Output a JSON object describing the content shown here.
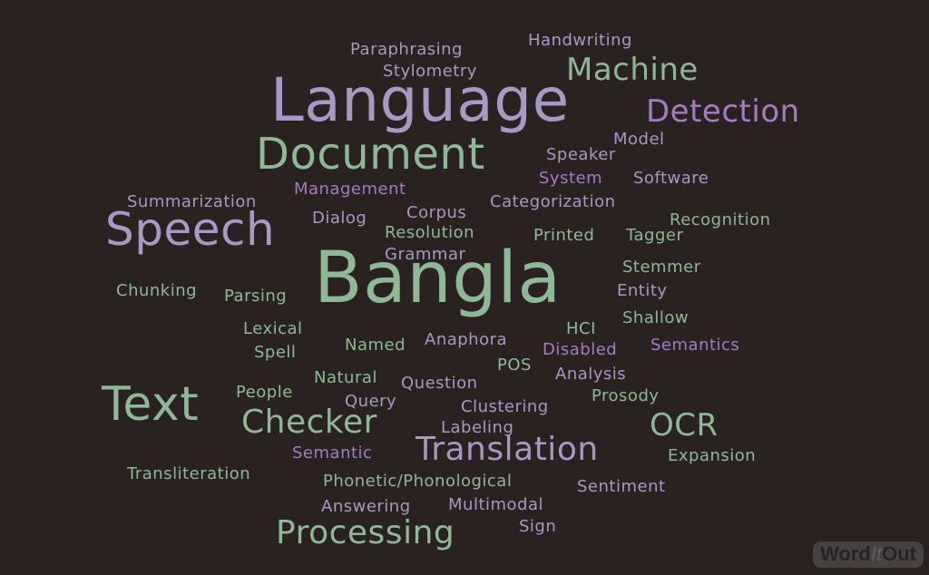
{
  "colors": {
    "background": "#2a2121",
    "green": "#8fb896",
    "lavender": "#a79ac2",
    "purple": "#a37cc2"
  },
  "words": [
    {
      "text": "Paraphrasing",
      "color": "lavender"
    },
    {
      "text": "Handwriting",
      "color": "lavender"
    },
    {
      "text": "Stylometry",
      "color": "lavender"
    },
    {
      "text": "Machine",
      "color": "green"
    },
    {
      "text": "Language",
      "color": "lavender"
    },
    {
      "text": "Detection",
      "color": "purple"
    },
    {
      "text": "Model",
      "color": "lavender"
    },
    {
      "text": "Document",
      "color": "green"
    },
    {
      "text": "Speaker",
      "color": "lavender"
    },
    {
      "text": "System",
      "color": "purple"
    },
    {
      "text": "Software",
      "color": "lavender"
    },
    {
      "text": "Summarization",
      "color": "lavender"
    },
    {
      "text": "Management",
      "color": "purple"
    },
    {
      "text": "Categorization",
      "color": "lavender"
    },
    {
      "text": "Speech",
      "color": "lavender"
    },
    {
      "text": "Dialog",
      "color": "lavender"
    },
    {
      "text": "Corpus",
      "color": "lavender"
    },
    {
      "text": "Recognition",
      "color": "green"
    },
    {
      "text": "Resolution",
      "color": "green"
    },
    {
      "text": "Printed",
      "color": "green"
    },
    {
      "text": "Tagger",
      "color": "green"
    },
    {
      "text": "Grammar",
      "color": "lavender"
    },
    {
      "text": "Bangla",
      "color": "green"
    },
    {
      "text": "Stemmer",
      "color": "green"
    },
    {
      "text": "Chunking",
      "color": "green"
    },
    {
      "text": "Parsing",
      "color": "green"
    },
    {
      "text": "Entity",
      "color": "lavender"
    },
    {
      "text": "Shallow",
      "color": "green"
    },
    {
      "text": "Lexical",
      "color": "green"
    },
    {
      "text": "HCI",
      "color": "green"
    },
    {
      "text": "Spell",
      "color": "green"
    },
    {
      "text": "Named",
      "color": "green"
    },
    {
      "text": "Anaphora",
      "color": "lavender"
    },
    {
      "text": "Disabled",
      "color": "purple"
    },
    {
      "text": "Semantics",
      "color": "purple"
    },
    {
      "text": "POS",
      "color": "green"
    },
    {
      "text": "Analysis",
      "color": "lavender"
    },
    {
      "text": "Natural",
      "color": "green"
    },
    {
      "text": "Question",
      "color": "lavender"
    },
    {
      "text": "Text",
      "color": "green"
    },
    {
      "text": "People",
      "color": "green"
    },
    {
      "text": "Query",
      "color": "lavender"
    },
    {
      "text": "Clustering",
      "color": "lavender"
    },
    {
      "text": "Prosody",
      "color": "green"
    },
    {
      "text": "Checker",
      "color": "green"
    },
    {
      "text": "Labeling",
      "color": "lavender"
    },
    {
      "text": "OCR",
      "color": "green"
    },
    {
      "text": "Semantic",
      "color": "purple"
    },
    {
      "text": "Translation",
      "color": "lavender"
    },
    {
      "text": "Expansion",
      "color": "green"
    },
    {
      "text": "Transliteration",
      "color": "green"
    },
    {
      "text": "Phonetic/Phonological",
      "color": "green"
    },
    {
      "text": "Sentiment",
      "color": "lavender"
    },
    {
      "text": "Answering",
      "color": "lavender"
    },
    {
      "text": "Multimodal",
      "color": "lavender"
    },
    {
      "text": "Processing",
      "color": "green"
    },
    {
      "text": "Sign",
      "color": "lavender"
    }
  ],
  "watermark": {
    "part1": "Word",
    "part2": "It",
    "part3": "Out"
  }
}
